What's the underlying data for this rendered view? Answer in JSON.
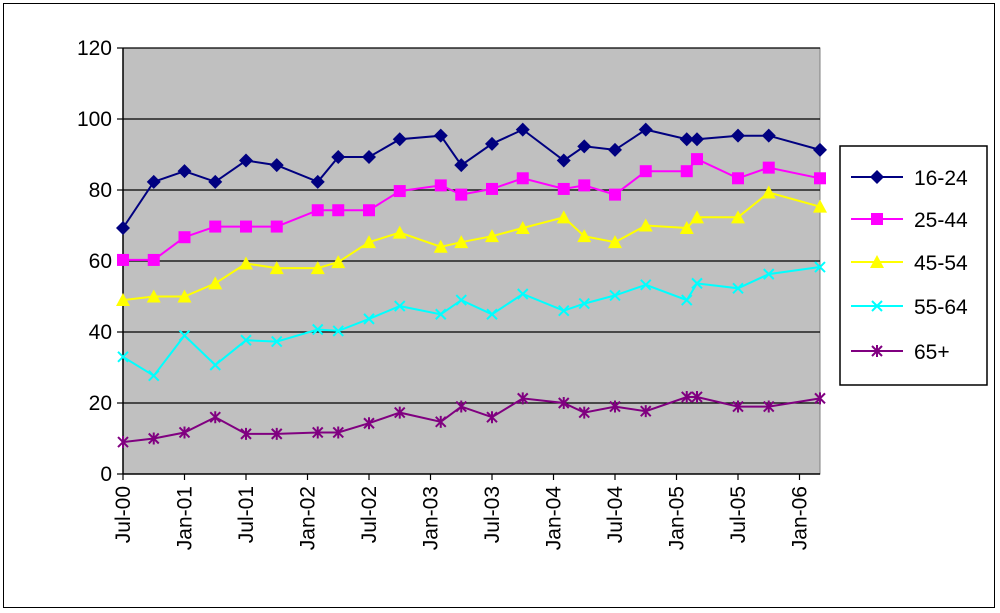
{
  "chart_data": {
    "type": "line",
    "title": "",
    "xlabel": "",
    "ylabel": "",
    "ylim": [
      0,
      120
    ],
    "y_ticks": [
      0,
      20,
      40,
      60,
      80,
      100,
      120
    ],
    "x_ticks": [
      "Jul-00",
      "Jan-01",
      "Jul-01",
      "Jan-02",
      "Jul-02",
      "Jan-03",
      "Jul-03",
      "Jan-04",
      "Jul-04",
      "Jan-05",
      "Jul-05",
      "Jan-06"
    ],
    "x_range": [
      "2000-07",
      "2006-03"
    ],
    "grid": "horizontal",
    "plot_background": "#C0C0C0",
    "legend_position": "right",
    "series": [
      {
        "name": "16-24",
        "color": "#000080",
        "marker": "diamond",
        "points": [
          [
            "2000-07",
            69.3
          ],
          [
            "2000-10",
            82.3
          ],
          [
            "2001-01",
            85.3
          ],
          [
            "2001-04",
            82.3
          ],
          [
            "2001-07",
            88.3
          ],
          [
            "2001-10",
            87.0
          ],
          [
            "2002-02",
            82.3
          ],
          [
            "2002-04",
            89.3
          ],
          [
            "2002-07",
            89.3
          ],
          [
            "2002-10",
            94.3
          ],
          [
            "2003-02",
            95.3
          ],
          [
            "2003-04",
            87.0
          ],
          [
            "2003-07",
            93.0
          ],
          [
            "2003-10",
            97.0
          ],
          [
            "2004-02",
            88.3
          ],
          [
            "2004-04",
            92.3
          ],
          [
            "2004-07",
            91.3
          ],
          [
            "2004-10",
            97.0
          ],
          [
            "2005-02",
            94.3
          ],
          [
            "2005-03",
            94.3
          ],
          [
            "2005-07",
            95.3
          ],
          [
            "2005-10",
            95.3
          ],
          [
            "2006-03",
            91.3
          ]
        ]
      },
      {
        "name": "25-44",
        "color": "#FF00FF",
        "marker": "square",
        "points": [
          [
            "2000-07",
            60.3
          ],
          [
            "2000-10",
            60.3
          ],
          [
            "2001-01",
            66.7
          ],
          [
            "2001-04",
            69.7
          ],
          [
            "2001-07",
            69.7
          ],
          [
            "2001-10",
            69.7
          ],
          [
            "2002-02",
            74.3
          ],
          [
            "2002-04",
            74.3
          ],
          [
            "2002-07",
            74.3
          ],
          [
            "2002-10",
            79.7
          ],
          [
            "2003-02",
            81.3
          ],
          [
            "2003-04",
            78.7
          ],
          [
            "2003-07",
            80.3
          ],
          [
            "2003-10",
            83.3
          ],
          [
            "2004-02",
            80.3
          ],
          [
            "2004-04",
            81.3
          ],
          [
            "2004-07",
            78.7
          ],
          [
            "2004-10",
            85.3
          ],
          [
            "2005-02",
            85.3
          ],
          [
            "2005-03",
            88.7
          ],
          [
            "2005-07",
            83.3
          ],
          [
            "2005-10",
            86.3
          ],
          [
            "2006-03",
            83.3
          ]
        ]
      },
      {
        "name": "45-54",
        "color": "#FFFF00",
        "marker": "triangle",
        "points": [
          [
            "2000-07",
            49.0
          ],
          [
            "2000-10",
            50.0
          ],
          [
            "2001-01",
            50.0
          ],
          [
            "2001-04",
            53.7
          ],
          [
            "2001-07",
            59.3
          ],
          [
            "2001-10",
            58.0
          ],
          [
            "2002-02",
            58.0
          ],
          [
            "2002-04",
            59.7
          ],
          [
            "2002-07",
            65.3
          ],
          [
            "2002-10",
            68.0
          ],
          [
            "2003-02",
            64.0
          ],
          [
            "2003-04",
            65.3
          ],
          [
            "2003-07",
            67.0
          ],
          [
            "2003-10",
            69.3
          ],
          [
            "2004-02",
            72.3
          ],
          [
            "2004-04",
            67.0
          ],
          [
            "2004-07",
            65.3
          ],
          [
            "2004-10",
            70.0
          ],
          [
            "2005-02",
            69.3
          ],
          [
            "2005-03",
            72.3
          ],
          [
            "2005-07",
            72.3
          ],
          [
            "2005-10",
            79.3
          ],
          [
            "2006-03",
            75.3
          ]
        ]
      },
      {
        "name": "55-64",
        "color": "#00FFFF",
        "marker": "x",
        "points": [
          [
            "2000-07",
            33.0
          ],
          [
            "2000-10",
            27.7
          ],
          [
            "2001-01",
            39.0
          ],
          [
            "2001-04",
            30.7
          ],
          [
            "2001-07",
            37.7
          ],
          [
            "2001-10",
            37.3
          ],
          [
            "2002-02",
            40.7
          ],
          [
            "2002-04",
            40.3
          ],
          [
            "2002-07",
            43.7
          ],
          [
            "2002-10",
            47.3
          ],
          [
            "2003-02",
            45.0
          ],
          [
            "2003-04",
            49.0
          ],
          [
            "2003-07",
            45.0
          ],
          [
            "2003-10",
            50.7
          ],
          [
            "2004-02",
            46.0
          ],
          [
            "2004-04",
            48.0
          ],
          [
            "2004-07",
            50.3
          ],
          [
            "2004-10",
            53.3
          ],
          [
            "2005-02",
            49.0
          ],
          [
            "2005-03",
            53.7
          ],
          [
            "2005-07",
            52.3
          ],
          [
            "2005-10",
            56.3
          ],
          [
            "2006-03",
            58.3
          ]
        ]
      },
      {
        "name": "65+",
        "color": "#800080",
        "marker": "star",
        "points": [
          [
            "2000-07",
            9.0
          ],
          [
            "2000-10",
            10.0
          ],
          [
            "2001-01",
            11.7
          ],
          [
            "2001-04",
            16.0
          ],
          [
            "2001-07",
            11.3
          ],
          [
            "2001-10",
            11.3
          ],
          [
            "2002-02",
            11.7
          ],
          [
            "2002-04",
            11.7
          ],
          [
            "2002-07",
            14.3
          ],
          [
            "2002-10",
            17.3
          ],
          [
            "2003-02",
            14.7
          ],
          [
            "2003-04",
            19.0
          ],
          [
            "2003-07",
            16.0
          ],
          [
            "2003-10",
            21.3
          ],
          [
            "2004-02",
            20.0
          ],
          [
            "2004-04",
            17.3
          ],
          [
            "2004-07",
            19.0
          ],
          [
            "2004-10",
            17.7
          ],
          [
            "2005-02",
            21.7
          ],
          [
            "2005-03",
            21.7
          ],
          [
            "2005-07",
            19.0
          ],
          [
            "2005-10",
            19.0
          ],
          [
            "2006-03",
            21.3
          ]
        ]
      }
    ]
  }
}
